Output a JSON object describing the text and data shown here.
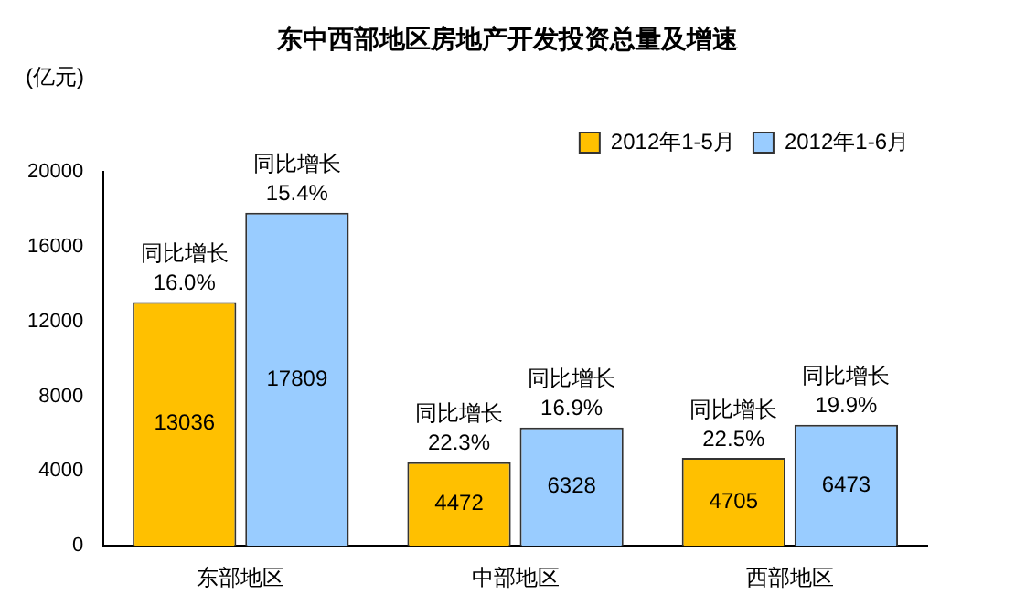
{
  "chart_data": {
    "type": "bar",
    "title": "东中西部地区房地产开发投资总量及增速",
    "ylabel": "(亿元)",
    "categories": [
      "东部地区",
      "中部地区",
      "西部地区"
    ],
    "series": [
      {
        "name": "2012年1-5月",
        "color": "#ffc000",
        "values": [
          13036,
          4472,
          4705
        ]
      },
      {
        "name": "2012年1-6月",
        "color": "#99ccff",
        "values": [
          17809,
          6328,
          6473
        ]
      }
    ],
    "ylim": [
      0,
      20000
    ],
    "yticks": [
      0,
      4000,
      8000,
      12000,
      16000,
      20000
    ],
    "grid": false,
    "legend": "top right",
    "data_labels": true,
    "annotations": [
      {
        "text": "同比增长\n16.0%",
        "x": "东部地区",
        "y": 13036
      },
      {
        "text": "同比增长\n15.4%",
        "x": "东部地区",
        "y": 17809
      },
      {
        "text": "同比增长\n22.3%",
        "x": "中部地区",
        "y": 4472
      },
      {
        "text": "同比增长\n16.9%",
        "x": "中部地区",
        "y": 6328
      },
      {
        "text": "同比增长\n22.5%",
        "x": "西部地区",
        "y": 4705
      },
      {
        "text": "同比增长\n19.9%",
        "x": "西部地区",
        "y": 6473
      }
    ]
  }
}
